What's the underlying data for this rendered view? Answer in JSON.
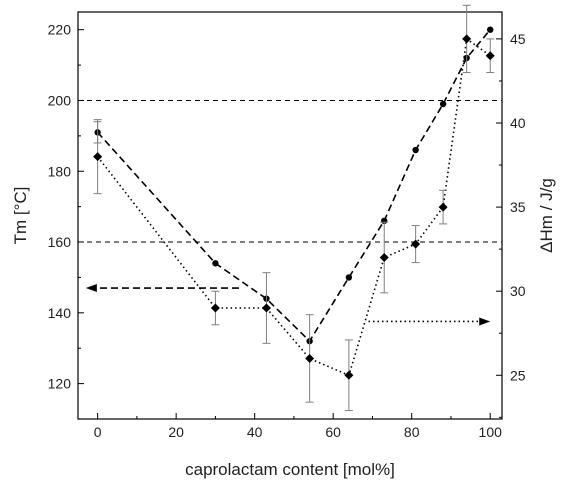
{
  "chart_data": {
    "type": "line",
    "xlabel": "caprolactam content [mol%]",
    "ylabel_left": "Tm [°C]",
    "ylabel_right": "ΔHm / J/g",
    "xlim": [
      -5,
      103
    ],
    "ylim_left": [
      110,
      225
    ],
    "ylim_right": [
      22.4,
      46.6
    ],
    "x_ticks": [
      0,
      20,
      40,
      60,
      80,
      100
    ],
    "y_ticks_left": [
      120,
      140,
      160,
      180,
      200,
      220
    ],
    "y_ticks_right": [
      25,
      30,
      35,
      40,
      45
    ],
    "grid": false,
    "reference_lines_left": [
      200,
      160
    ],
    "series": [
      {
        "axis": "left",
        "marker": "circle",
        "line_style": "dashed",
        "x": [
          0,
          30,
          43,
          54,
          64,
          73,
          81,
          88,
          94,
          100
        ],
        "y": [
          191,
          154,
          144,
          132,
          150,
          166,
          186,
          199,
          212,
          220
        ],
        "err": [
          3,
          0,
          0,
          0,
          0,
          0,
          0,
          0,
          0,
          0
        ]
      },
      {
        "axis": "right",
        "marker": "diamond",
        "line_style": "dotted",
        "x": [
          0,
          30,
          43,
          54,
          64,
          73,
          81,
          88,
          94,
          100
        ],
        "y": [
          38.0,
          29.0,
          29.0,
          26.0,
          25.0,
          32.0,
          32.8,
          35.0,
          45.0,
          44.0
        ],
        "err": [
          2.2,
          1.0,
          2.1,
          2.6,
          2.1,
          2.1,
          1.1,
          1.0,
          2.0,
          1.0
        ]
      }
    ],
    "arrows": [
      {
        "axis": "left",
        "direction": "left",
        "style": "dashed",
        "y": 147,
        "x_from": 36,
        "x_to": -3
      },
      {
        "axis": "right",
        "direction": "right",
        "style": "dotted",
        "y": 28.2,
        "x_from": 69,
        "x_to": 100
      }
    ],
    "colors": {
      "line": "#000000",
      "error_bar": "#7f7f7f",
      "reference_line": "#000000"
    }
  }
}
